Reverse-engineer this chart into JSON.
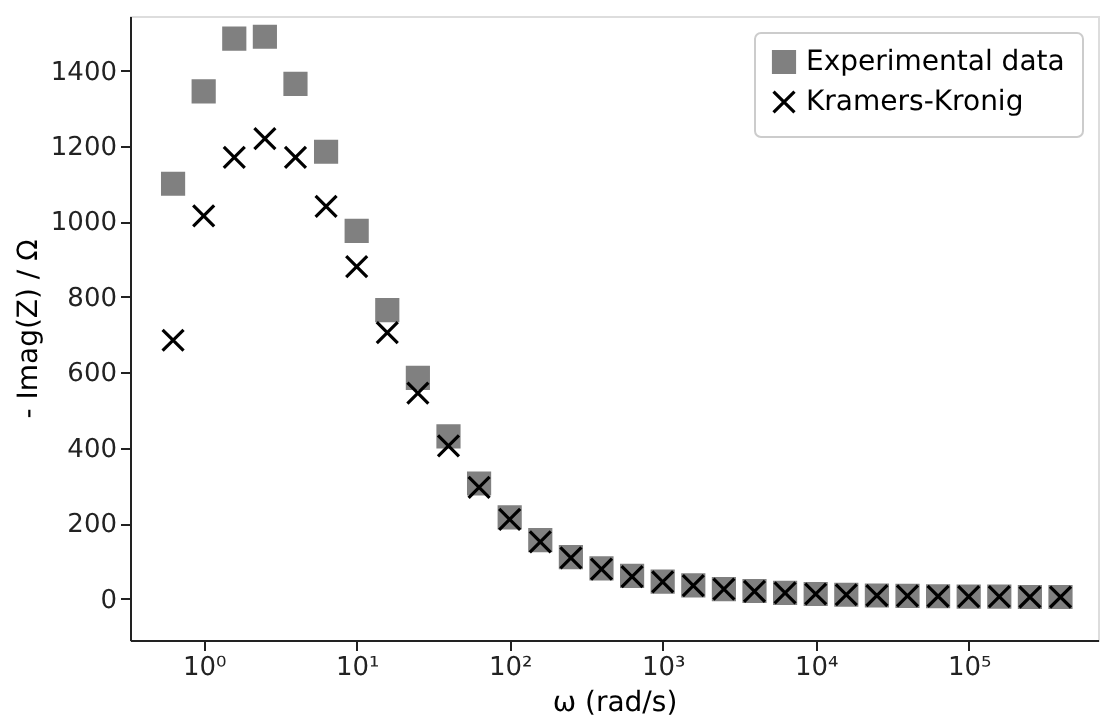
{
  "chart_data": {
    "type": "scatter",
    "xlabel": "ω (rad/s)",
    "ylabel": "- Imag(Z) / Ω",
    "log": "x",
    "legend": "top right",
    "grid": false,
    "x": [
      0.631,
      1,
      1.585,
      2.512,
      3.981,
      6.31,
      10,
      15.85,
      25.12,
      39.81,
      63.1,
      100,
      158.5,
      251.2,
      398.1,
      631,
      1000,
      1585,
      2512,
      3981,
      6310,
      10000,
      15850,
      25120,
      39810,
      63100,
      100000,
      158500,
      251200,
      398100
    ],
    "series": [
      {
        "name": "Experimental data",
        "color": "#808080",
        "marker": "square",
        "values": [
          1100,
          1345,
          1485,
          1490,
          1365,
          1185,
          975,
          765,
          585,
          430,
          305,
          215,
          155,
          110,
          80,
          60,
          45,
          35,
          25,
          20,
          15,
          12,
          10,
          8,
          7,
          6,
          5,
          5,
          4,
          4
        ]
      },
      {
        "name": "Kramers-Kronig",
        "color": "#000000",
        "marker": "cross",
        "values": [
          685,
          1015,
          1170,
          1220,
          1170,
          1040,
          880,
          705,
          545,
          405,
          295,
          210,
          150,
          108,
          78,
          58,
          44,
          34,
          25,
          19,
          15,
          12,
          10,
          8,
          7,
          6,
          5,
          5,
          4,
          4
        ]
      }
    ],
    "xlim": [
      0.33,
      700000
    ],
    "xticks": [
      {
        "value": 1,
        "label": "10⁰"
      },
      {
        "value": 10,
        "label": "10¹"
      },
      {
        "value": 100,
        "label": "10²"
      },
      {
        "value": 1000,
        "label": "10³"
      },
      {
        "value": 10000,
        "label": "10⁴"
      },
      {
        "value": 100000,
        "label": "10⁵"
      }
    ],
    "ylim": [
      -110,
      1545
    ],
    "yticks": [
      0,
      200,
      400,
      600,
      800,
      1000,
      1200,
      1400
    ]
  }
}
